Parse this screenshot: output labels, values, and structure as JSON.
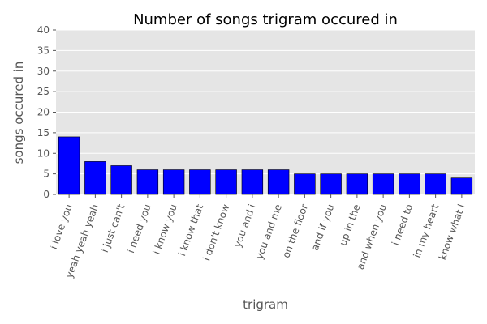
{
  "chart_data": {
    "type": "bar",
    "title": "Number of songs trigram occured in",
    "xlabel": "trigram",
    "ylabel": "songs occured in",
    "ylim": [
      0,
      40
    ],
    "yticks": [
      0,
      5,
      10,
      15,
      20,
      25,
      30,
      35,
      40
    ],
    "grid": true,
    "bar_color": "#0000ff",
    "plot_background": "#e5e5e5",
    "categories": [
      "i love you",
      "yeah yeah yeah",
      "i just can't",
      "i need you",
      "i know you",
      "i know that",
      "i don't know",
      "you and i",
      "you and me",
      "on the floor",
      "and if you",
      "up in the",
      "and when you",
      "i need to",
      "in my heart",
      "know what i"
    ],
    "values": [
      14,
      8,
      7,
      6,
      6,
      6,
      6,
      6,
      6,
      5,
      5,
      5,
      5,
      5,
      5,
      4
    ]
  }
}
